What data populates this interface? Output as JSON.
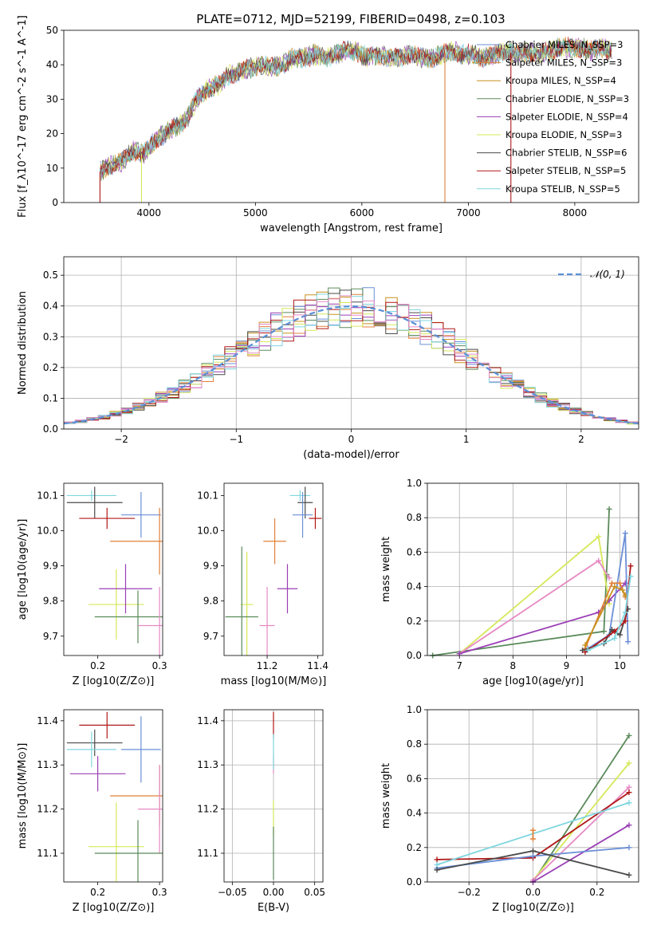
{
  "figure": {
    "title": "PLATE=0712, MJD=52199, FIBERID=0498, z=0.103"
  },
  "colors": {
    "Chabrier MILES": "#6b8fd6",
    "Salpeter MILES": "#e0803a",
    "Kroupa MILES": "#c8901e",
    "Chabrier ELODIE": "#5a8a5a",
    "Salpeter ELODIE": "#9a3fb5",
    "Kroupa ELODIE": "#d6e85a",
    "Chabrier STELIB": "#4a4a4a",
    "Salpeter STELIB": "#b01818",
    "Kroupa STELIB": "#7fd6e0",
    "extra_pink": "#e68ac4",
    "normal": "#5b8fd6"
  },
  "chart_data": [
    {
      "id": "spectrum",
      "type": "line",
      "xlabel": "wavelength [Angstrom, rest frame]",
      "ylabel": "Flux [f_λ10^-17 erg cm^-2 s^-1 A^-1]",
      "xlim": [
        3200,
        8600
      ],
      "ylim": [
        0,
        50
      ],
      "xticks": [
        "4000",
        "5000",
        "6000",
        "7000",
        "8000"
      ],
      "yticks": [
        "0",
        "10",
        "20",
        "30",
        "40",
        "50"
      ],
      "legend_position": "right",
      "legend": [
        {
          "name": "Chabrier MILES, N_SSP=3",
          "color_key": "Chabrier MILES"
        },
        {
          "name": "Salpeter MILES, N_SSP=3",
          "color_key": "Salpeter MILES"
        },
        {
          "name": "Kroupa MILES, N_SSP=4",
          "color_key": "Kroupa MILES"
        },
        {
          "name": "Chabrier ELODIE, N_SSP=3",
          "color_key": "Chabrier ELODIE"
        },
        {
          "name": "Salpeter ELODIE, N_SSP=4",
          "color_key": "Salpeter ELODIE"
        },
        {
          "name": "Kroupa ELODIE, N_SSP=3",
          "color_key": "Kroupa ELODIE"
        },
        {
          "name": "Chabrier STELIB, N_SSP=6",
          "color_key": "Chabrier STELIB"
        },
        {
          "name": "Salpeter STELIB, N_SSP=5",
          "color_key": "Salpeter STELIB"
        },
        {
          "name": "Kroupa STELIB, N_SSP=5",
          "color_key": "Kroupa STELIB"
        }
      ],
      "continuum": [
        [
          3540,
          9
        ],
        [
          3650,
          11
        ],
        [
          3750,
          12
        ],
        [
          3850,
          15
        ],
        [
          3950,
          14
        ],
        [
          4050,
          18
        ],
        [
          4150,
          20
        ],
        [
          4250,
          22
        ],
        [
          4350,
          24
        ],
        [
          4450,
          30
        ],
        [
          4550,
          33
        ],
        [
          4650,
          34
        ],
        [
          4750,
          37
        ],
        [
          4850,
          38
        ],
        [
          4950,
          39
        ],
        [
          5050,
          40
        ],
        [
          5150,
          39
        ],
        [
          5250,
          40
        ],
        [
          5350,
          42
        ],
        [
          5450,
          42
        ],
        [
          5550,
          43
        ],
        [
          5650,
          42
        ],
        [
          5750,
          43
        ],
        [
          5850,
          44
        ],
        [
          5950,
          44
        ],
        [
          6050,
          42
        ],
        [
          6150,
          43
        ],
        [
          6250,
          42
        ],
        [
          6350,
          42
        ],
        [
          6450,
          43
        ],
        [
          6550,
          42
        ],
        [
          6650,
          42
        ],
        [
          6750,
          43
        ],
        [
          6850,
          44
        ],
        [
          6950,
          43
        ],
        [
          7050,
          43
        ],
        [
          7150,
          42
        ],
        [
          7250,
          43
        ],
        [
          7350,
          44
        ],
        [
          7450,
          43
        ],
        [
          7550,
          44
        ],
        [
          7650,
          43
        ],
        [
          7750,
          44
        ],
        [
          7850,
          45
        ],
        [
          7950,
          45
        ],
        [
          8050,
          45
        ],
        [
          8150,
          44
        ],
        [
          8250,
          45
        ],
        [
          8350,
          44
        ]
      ],
      "drop_lines": [
        {
          "series": "Salpeter STELIB",
          "x": 3540
        },
        {
          "series": "Kroupa ELODIE",
          "x": 3930
        },
        {
          "series": "Salpeter MILES",
          "x": 6780
        },
        {
          "series": "Salpeter STELIB",
          "x": 7400
        }
      ]
    },
    {
      "id": "histogram",
      "type": "bar",
      "xlabel": "(data-model)/error",
      "ylabel": "Normed distribution",
      "xlim": [
        -2.5,
        2.5
      ],
      "ylim": [
        0,
        0.56
      ],
      "xticks": [
        "−2",
        "−1",
        "0",
        "1",
        "2"
      ],
      "yticks": [
        "0.0",
        "0.1",
        "0.2",
        "0.3",
        "0.4",
        "0.5"
      ],
      "grid": true,
      "legend_position": "top-right",
      "normal_label": "𝒩(0, 1)",
      "bin_width": 0.1
    },
    {
      "id": "age-vs-Z",
      "type": "scatter",
      "xlabel": "Z [log10(Z/Z⊙)]",
      "ylabel": "age [log10(age/yr)]",
      "xlim": [
        0.145,
        0.305
      ],
      "ylim": [
        9.645,
        10.135
      ],
      "xticks": [
        "0.2",
        "0.3"
      ],
      "yticks": [
        "9.7",
        "9.8",
        "9.9",
        "10.0",
        "10.1"
      ],
      "points": [
        {
          "series": "Kroupa STELIB",
          "x": 0.19,
          "y": 10.1,
          "xerr": 0.04,
          "yerr": 0.015
        },
        {
          "series": "Chabrier STELIB",
          "x": 0.195,
          "y": 10.08,
          "xerr": 0.045,
          "yerr": 0.045
        },
        {
          "series": "Salpeter STELIB",
          "x": 0.215,
          "y": 10.035,
          "xerr": 0.045,
          "yerr": 0.03
        },
        {
          "series": "Chabrier MILES",
          "x": 0.27,
          "y": 10.045,
          "xerr": 0.032,
          "yerr": 0.065
        },
        {
          "series": "Salpeter MILES",
          "x": 0.3,
          "y": 9.97,
          "xerr": 0.08,
          "yerr": 0.095
        },
        {
          "series": "Kroupa ELODIE",
          "x": 0.23,
          "y": 9.79,
          "xerr": 0.045,
          "yerr": 0.1
        },
        {
          "series": "Salpeter ELODIE",
          "x": 0.245,
          "y": 9.835,
          "xerr": 0.043,
          "yerr": 0.07
        },
        {
          "series": "Chabrier ELODIE",
          "x": 0.265,
          "y": 9.755,
          "xerr": 0.07,
          "yerr": 0.075
        },
        {
          "series": "extra_pink",
          "x": 0.3,
          "y": 9.73,
          "xerr": 0.035,
          "yerr": 0.11
        }
      ]
    },
    {
      "id": "age-vs-mass",
      "type": "scatter",
      "xlabel": "mass [log10(M/M⊙)]",
      "ylabel": "",
      "xlim": [
        11.03,
        11.42
      ],
      "ylim": [
        9.645,
        10.135
      ],
      "xticks": [
        "11.2",
        "11.4"
      ],
      "yticks": [
        "9.7",
        "9.8",
        "9.9",
        "10.0",
        "10.1"
      ],
      "points": [
        {
          "series": "Kroupa STELIB",
          "x": 11.33,
          "y": 10.1,
          "xerr": 0.04,
          "yerr": 0.015
        },
        {
          "series": "Chabrier STELIB",
          "x": 11.35,
          "y": 10.08,
          "xerr": 0.03,
          "yerr": 0.045
        },
        {
          "series": "Salpeter STELIB",
          "x": 11.39,
          "y": 10.035,
          "xerr": 0.025,
          "yerr": 0.03
        },
        {
          "series": "Chabrier MILES",
          "x": 11.34,
          "y": 10.045,
          "xerr": 0.04,
          "yerr": 0.065
        },
        {
          "series": "Salpeter MILES",
          "x": 11.23,
          "y": 9.97,
          "xerr": 0.045,
          "yerr": 0.065
        },
        {
          "series": "Kroupa ELODIE",
          "x": 11.12,
          "y": 9.79,
          "xerr": 0.025,
          "yerr": 0.15
        },
        {
          "series": "Salpeter ELODIE",
          "x": 11.28,
          "y": 9.835,
          "xerr": 0.04,
          "yerr": 0.07
        },
        {
          "series": "Chabrier ELODIE",
          "x": 11.1,
          "y": 9.755,
          "xerr": 0.065,
          "yerr": 0.2
        },
        {
          "series": "extra_pink",
          "x": 11.2,
          "y": 9.73,
          "xerr": 0.03,
          "yerr": 0.11
        }
      ]
    },
    {
      "id": "weight-vs-age",
      "type": "line",
      "xlabel": "age [log10(age/yr)]",
      "ylabel": "mass weight",
      "xlim": [
        6.4,
        10.35
      ],
      "ylim": [
        0,
        1.0
      ],
      "xticks": [
        "7",
        "8",
        "9",
        "10"
      ],
      "yticks": [
        "0.0",
        "0.2",
        "0.4",
        "0.6",
        "0.8",
        "1.0"
      ],
      "grid": true,
      "series": [
        {
          "name": "Chabrier ELODIE",
          "x": [
            6.5,
            9.7,
            9.75,
            9.8
          ],
          "y": [
            0.0,
            0.14,
            0.47,
            0.85
          ]
        },
        {
          "name": "Kroupa ELODIE",
          "x": [
            7.0,
            9.6,
            9.8
          ],
          "y": [
            0.01,
            0.69,
            0.3
          ]
        },
        {
          "name": "extra_pink",
          "x": [
            7.0,
            9.6,
            9.8
          ],
          "y": [
            0.01,
            0.55,
            0.45
          ]
        },
        {
          "name": "Salpeter ELODIE",
          "x": [
            7.0,
            9.6,
            9.8,
            10.1
          ],
          "y": [
            0.01,
            0.25,
            0.32,
            0.42
          ]
        },
        {
          "name": "Chabrier MILES",
          "x": [
            9.4,
            9.8,
            10.1,
            10.15
          ],
          "y": [
            0.04,
            0.12,
            0.71,
            0.08
          ]
        },
        {
          "name": "Salpeter MILES",
          "x": [
            9.35,
            9.85,
            10.0,
            10.1
          ],
          "y": [
            0.04,
            0.42,
            0.42,
            0.34
          ]
        },
        {
          "name": "Kroupa MILES",
          "x": [
            9.35,
            9.9,
            10.05,
            10.1
          ],
          "y": [
            0.06,
            0.4,
            0.38,
            0.35
          ]
        },
        {
          "name": "Chabrier STELIB",
          "x": [
            9.3,
            9.7,
            9.85,
            10.0,
            10.15
          ],
          "y": [
            0.03,
            0.07,
            0.15,
            0.12,
            0.27
          ]
        },
        {
          "name": "Salpeter STELIB",
          "x": [
            9.35,
            9.9,
            10.1,
            10.2
          ],
          "y": [
            0.02,
            0.14,
            0.2,
            0.52
          ]
        },
        {
          "name": "Kroupa STELIB",
          "x": [
            9.4,
            9.9,
            10.1,
            10.2
          ],
          "y": [
            0.03,
            0.1,
            0.25,
            0.46
          ]
        }
      ]
    },
    {
      "id": "mass-vs-Z",
      "type": "scatter",
      "xlabel": "Z [log10(Z/Z⊙)]",
      "ylabel": "mass [log10(M/M⊙)]",
      "xlim": [
        0.145,
        0.305
      ],
      "ylim": [
        11.035,
        11.425
      ],
      "xticks": [
        "0.2",
        "0.3"
      ],
      "yticks": [
        "11.1",
        "11.2",
        "11.3",
        "11.4"
      ],
      "points": [
        {
          "series": "Salpeter STELIB",
          "x": 0.215,
          "y": 11.39,
          "xerr": 0.045,
          "yerr": 0.03
        },
        {
          "series": "Chabrier STELIB",
          "x": 0.195,
          "y": 11.35,
          "xerr": 0.045,
          "yerr": 0.03
        },
        {
          "series": "Kroupa STELIB",
          "x": 0.19,
          "y": 11.335,
          "xerr": 0.04,
          "yerr": 0.04
        },
        {
          "series": "Chabrier MILES",
          "x": 0.27,
          "y": 11.335,
          "xerr": 0.032,
          "yerr": 0.075
        },
        {
          "series": "Salpeter ELODIE",
          "x": 0.2,
          "y": 11.28,
          "xerr": 0.045,
          "yerr": 0.04
        },
        {
          "series": "Salpeter MILES",
          "x": 0.3,
          "y": 11.23,
          "xerr": 0.08,
          "yerr": 0.07
        },
        {
          "series": "extra_pink",
          "x": 0.3,
          "y": 11.2,
          "xerr": 0.035,
          "yerr": 0.1
        },
        {
          "series": "Kroupa ELODIE",
          "x": 0.23,
          "y": 11.115,
          "xerr": 0.045,
          "yerr": 0.1
        },
        {
          "series": "Chabrier ELODIE",
          "x": 0.265,
          "y": 11.1,
          "xerr": 0.07,
          "yerr": 0.075
        }
      ]
    },
    {
      "id": "mass-vs-ebv",
      "type": "scatter",
      "xlabel": "E(B-V)",
      "ylabel": "",
      "xlim": [
        -0.06,
        0.06
      ],
      "ylim": [
        11.035,
        11.425
      ],
      "xticks": [
        "−0.05",
        "0.00",
        "0.05"
      ],
      "yticks": [
        "11.1",
        "11.2",
        "11.3",
        "11.4"
      ],
      "grid": true,
      "points": [
        {
          "series": "Salpeter STELIB",
          "x": 0.0,
          "y": 11.39,
          "yerr": 0.03
        },
        {
          "series": "extra_pink",
          "x": 0.0,
          "y": 11.3,
          "yerr": 0.02
        },
        {
          "series": "Kroupa STELIB",
          "x": 0.0,
          "y": 11.33,
          "yerr": 0.04
        },
        {
          "series": "Kroupa ELODIE",
          "x": 0.0,
          "y": 11.18,
          "yerr": 0.04
        },
        {
          "series": "Chabrier ELODIE",
          "x": 0.0,
          "y": 11.1,
          "yerr": 0.06
        }
      ]
    },
    {
      "id": "weight-vs-Z",
      "type": "line",
      "xlabel": "Z [log10(Z/Z⊙)]",
      "ylabel": "mass weight",
      "xlim": [
        -0.33,
        0.33
      ],
      "ylim": [
        0,
        1.0
      ],
      "xticks": [
        "−0.2",
        "0.0",
        "0.2"
      ],
      "yticks": [
        "0.0",
        "0.2",
        "0.4",
        "0.6",
        "0.8",
        "1.0"
      ],
      "grid": true,
      "series": [
        {
          "name": "Chabrier ELODIE",
          "x": [
            0.0,
            0.3
          ],
          "y": [
            0.0,
            0.85
          ]
        },
        {
          "name": "Kroupa ELODIE",
          "x": [
            0.0,
            0.3
          ],
          "y": [
            0.01,
            0.69
          ]
        },
        {
          "name": "extra_pink",
          "x": [
            0.0,
            0.3
          ],
          "y": [
            0.01,
            0.55
          ]
        },
        {
          "name": "Salpeter ELODIE",
          "x": [
            0.0,
            0.3
          ],
          "y": [
            0.0,
            0.33
          ]
        },
        {
          "name": "Salpeter STELIB",
          "x": [
            -0.3,
            0.0,
            0.3
          ],
          "y": [
            0.13,
            0.14,
            0.52
          ]
        },
        {
          "name": "Chabrier MILES",
          "x": [
            -0.3,
            0.0,
            0.3
          ],
          "y": [
            0.08,
            0.15,
            0.2
          ]
        },
        {
          "name": "Kroupa STELIB",
          "x": [
            -0.3,
            0.3
          ],
          "y": [
            0.1,
            0.46
          ]
        },
        {
          "name": "Chabrier STELIB",
          "x": [
            -0.3,
            0.0,
            0.3
          ],
          "y": [
            0.07,
            0.18,
            0.04
          ]
        },
        {
          "name": "Salpeter MILES",
          "x": [
            0.0,
            0.0
          ],
          "y": [
            0.25,
            0.3
          ]
        }
      ]
    }
  ]
}
